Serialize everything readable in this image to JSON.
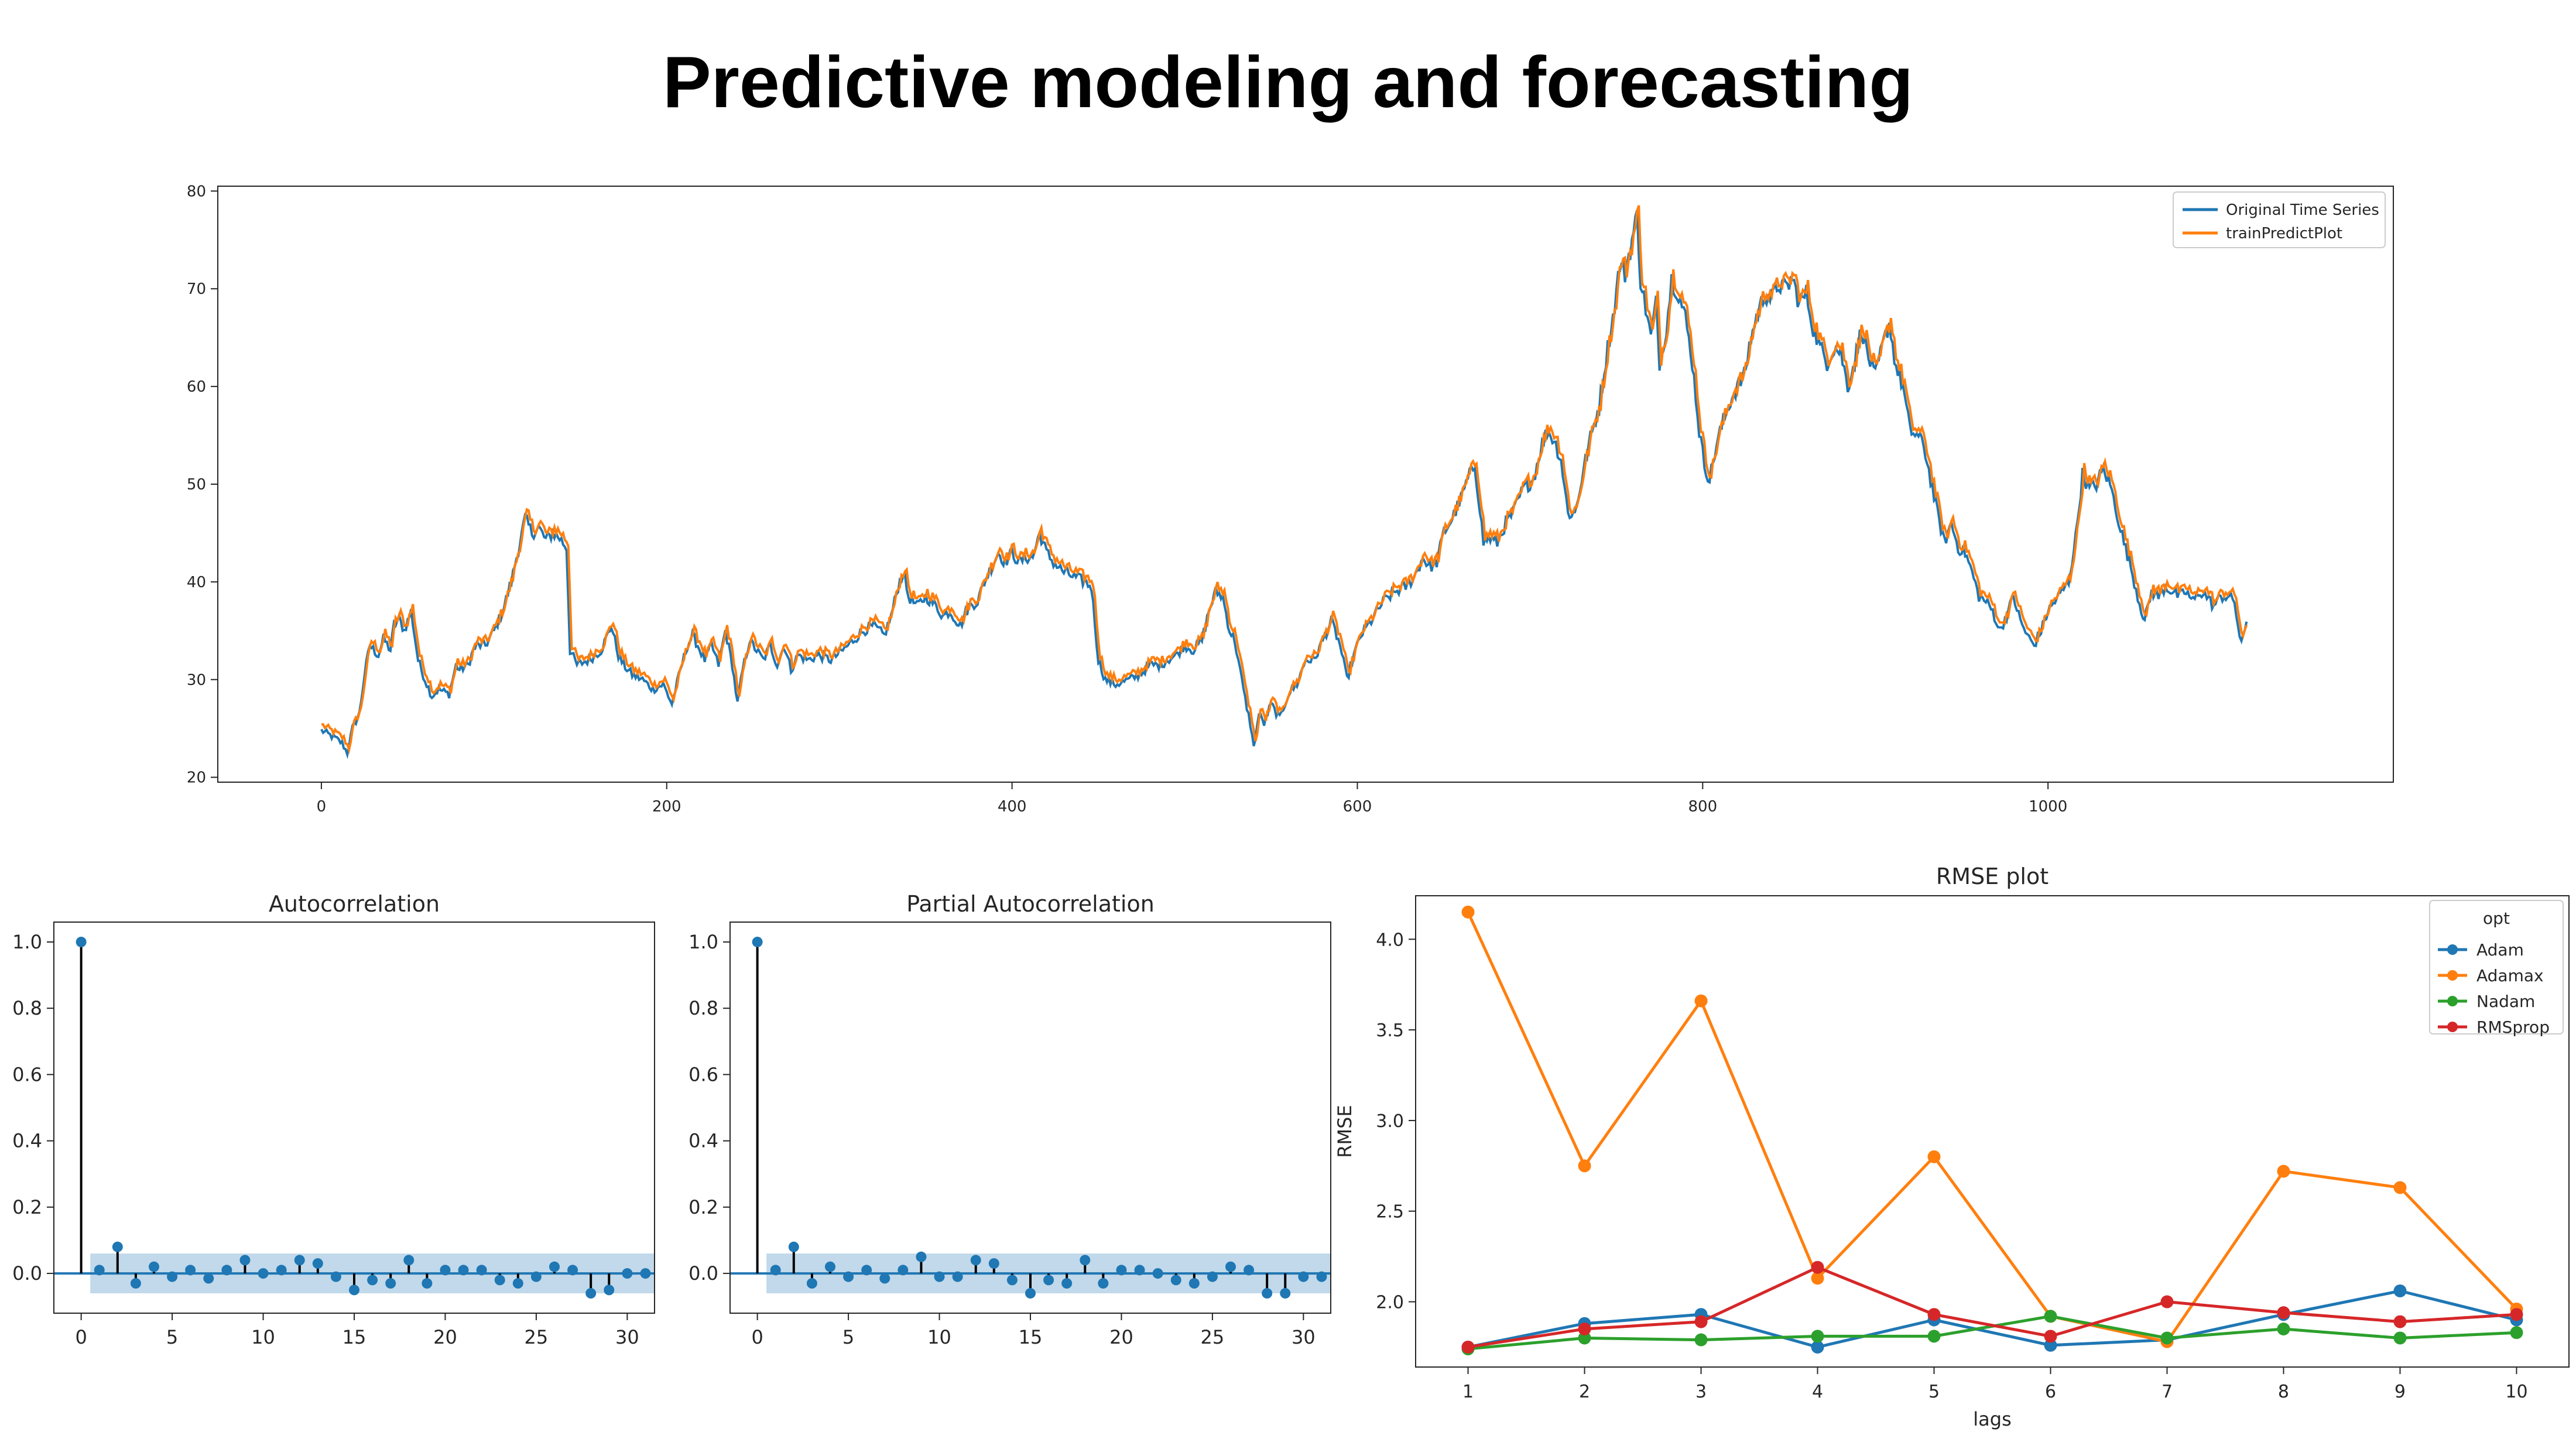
{
  "page": {
    "title": "Predictive modeling and forecasting"
  },
  "chart_data": [
    {
      "id": "timeseries",
      "type": "line",
      "title": "",
      "xlabel": "",
      "ylabel": "",
      "xlim": [
        -60,
        1200
      ],
      "ylim": [
        19.5,
        80.5
      ],
      "xticks": [
        0,
        200,
        400,
        600,
        800,
        1000
      ],
      "yticks": [
        20,
        30,
        40,
        50,
        60,
        70,
        80
      ],
      "grid": false,
      "legend": {
        "position": "upper-right",
        "entries": [
          "Original Time Series",
          "trainPredictPlot"
        ]
      },
      "x_range": [
        0,
        1137
      ],
      "keypoints": [
        [
          0,
          24.8
        ],
        [
          8,
          24.0
        ],
        [
          12,
          23.5
        ],
        [
          15,
          22.5
        ],
        [
          18,
          25.0
        ],
        [
          22,
          26.5
        ],
        [
          25,
          30.5
        ],
        [
          28,
          33.5
        ],
        [
          33,
          32.5
        ],
        [
          36,
          34.2
        ],
        [
          40,
          33.0
        ],
        [
          42,
          35.5
        ],
        [
          45,
          36.2
        ],
        [
          48,
          35.0
        ],
        [
          52,
          37.0
        ],
        [
          56,
          32.0
        ],
        [
          60,
          30.0
        ],
        [
          64,
          28.3
        ],
        [
          68,
          29.0
        ],
        [
          74,
          28.5
        ],
        [
          78,
          31.5
        ],
        [
          80,
          31.0
        ],
        [
          85,
          31.5
        ],
        [
          88,
          33.0
        ],
        [
          90,
          33.5
        ],
        [
          95,
          33.5
        ],
        [
          100,
          35.0
        ],
        [
          105,
          37.0
        ],
        [
          110,
          40.0
        ],
        [
          113,
          42.5
        ],
        [
          115,
          44.0
        ],
        [
          118,
          46.5
        ],
        [
          122,
          45.0
        ],
        [
          126,
          45.5
        ],
        [
          130,
          44.3
        ],
        [
          134,
          45.0
        ],
        [
          138,
          44.5
        ],
        [
          142,
          43.5
        ],
        [
          144,
          33.0
        ],
        [
          148,
          31.5
        ],
        [
          155,
          32.0
        ],
        [
          162,
          33.0
        ],
        [
          168,
          35.5
        ],
        [
          172,
          32.5
        ],
        [
          175,
          31.5
        ],
        [
          180,
          30.5
        ],
        [
          186,
          30.0
        ],
        [
          192,
          29.0
        ],
        [
          198,
          29.5
        ],
        [
          203,
          27.5
        ],
        [
          208,
          31.0
        ],
        [
          212,
          33.5
        ],
        [
          215,
          34.5
        ],
        [
          218,
          33.5
        ],
        [
          222,
          32.0
        ],
        [
          226,
          33.5
        ],
        [
          230,
          31.5
        ],
        [
          234,
          35.0
        ],
        [
          238,
          31.5
        ],
        [
          241,
          27.5
        ],
        [
          244,
          31.0
        ],
        [
          248,
          34.0
        ],
        [
          252,
          33.0
        ],
        [
          256,
          32.0
        ],
        [
          260,
          33.5
        ],
        [
          264,
          31.5
        ],
        [
          268,
          33.5
        ],
        [
          272,
          31.0
        ],
        [
          276,
          32.5
        ],
        [
          282,
          32.0
        ],
        [
          288,
          32.5
        ],
        [
          295,
          32.0
        ],
        [
          302,
          33.0
        ],
        [
          308,
          34.0
        ],
        [
          314,
          35.0
        ],
        [
          320,
          35.5
        ],
        [
          326,
          34.5
        ],
        [
          330,
          36.5
        ],
        [
          334,
          39.5
        ],
        [
          337,
          41.0
        ],
        [
          340,
          38.5
        ],
        [
          345,
          37.5
        ],
        [
          350,
          38.5
        ],
        [
          356,
          37.5
        ],
        [
          360,
          36.5
        ],
        [
          364,
          37.0
        ],
        [
          370,
          35.5
        ],
        [
          375,
          37.5
        ],
        [
          380,
          38.0
        ],
        [
          384,
          40.0
        ],
        [
          388,
          41.5
        ],
        [
          392,
          43.0
        ],
        [
          396,
          42.0
        ],
        [
          400,
          43.0
        ],
        [
          404,
          42.0
        ],
        [
          408,
          42.5
        ],
        [
          412,
          42.5
        ],
        [
          416,
          45.0
        ],
        [
          420,
          43.0
        ],
        [
          424,
          42.0
        ],
        [
          430,
          41.0
        ],
        [
          436,
          40.5
        ],
        [
          442,
          40.0
        ],
        [
          446,
          39.5
        ],
        [
          450,
          32.0
        ],
        [
          454,
          30.0
        ],
        [
          460,
          29.5
        ],
        [
          468,
          30.0
        ],
        [
          474,
          30.5
        ],
        [
          480,
          31.5
        ],
        [
          486,
          31.5
        ],
        [
          490,
          32.0
        ],
        [
          495,
          32.5
        ],
        [
          500,
          33.5
        ],
        [
          505,
          33.0
        ],
        [
          510,
          34.0
        ],
        [
          514,
          37.0
        ],
        [
          518,
          39.0
        ],
        [
          522,
          38.5
        ],
        [
          526,
          35.0
        ],
        [
          529,
          34.0
        ],
        [
          532,
          31.0
        ],
        [
          535,
          28.0
        ],
        [
          538,
          25.5
        ],
        [
          540,
          23.0
        ],
        [
          543,
          26.5
        ],
        [
          546,
          25.5
        ],
        [
          550,
          27.5
        ],
        [
          555,
          26.0
        ],
        [
          560,
          28.5
        ],
        [
          565,
          29.5
        ],
        [
          570,
          32.0
        ],
        [
          575,
          32.0
        ],
        [
          580,
          34.0
        ],
        [
          585,
          36.0
        ],
        [
          590,
          33.5
        ],
        [
          594,
          30.0
        ],
        [
          598,
          32.5
        ],
        [
          602,
          34.5
        ],
        [
          608,
          36.0
        ],
        [
          615,
          38.0
        ],
        [
          622,
          39.0
        ],
        [
          628,
          39.5
        ],
        [
          633,
          40.5
        ],
        [
          638,
          42.5
        ],
        [
          642,
          41.5
        ],
        [
          646,
          42.0
        ],
        [
          650,
          45.0
        ],
        [
          655,
          46.5
        ],
        [
          660,
          48.5
        ],
        [
          664,
          50.5
        ],
        [
          668,
          52.0
        ],
        [
          671,
          47.5
        ],
        [
          673,
          44.0
        ],
        [
          676,
          44.5
        ],
        [
          681,
          44.0
        ],
        [
          686,
          46.0
        ],
        [
          690,
          47.0
        ],
        [
          696,
          49.5
        ],
        [
          702,
          50.5
        ],
        [
          706,
          53.5
        ],
        [
          710,
          55.5
        ],
        [
          714,
          54.5
        ],
        [
          718,
          52.5
        ],
        [
          722,
          47.0
        ],
        [
          726,
          47.0
        ],
        [
          730,
          50.5
        ],
        [
          734,
          54.0
        ],
        [
          740,
          58.0
        ],
        [
          745,
          64.0
        ],
        [
          748,
          67.0
        ],
        [
          752,
          72.5
        ],
        [
          755,
          71.5
        ],
        [
          758,
          74.0
        ],
        [
          762,
          77.5
        ],
        [
          764,
          71.0
        ],
        [
          767,
          68.0
        ],
        [
          770,
          65.0
        ],
        [
          773,
          68.5
        ],
        [
          775,
          62.5
        ],
        [
          779,
          66.0
        ],
        [
          782,
          71.0
        ],
        [
          786,
          69.5
        ],
        [
          790,
          67.0
        ],
        [
          794,
          62.5
        ],
        [
          798,
          55.5
        ],
        [
          801,
          52.0
        ],
        [
          804,
          50.5
        ],
        [
          808,
          54.0
        ],
        [
          812,
          56.5
        ],
        [
          816,
          58.5
        ],
        [
          820,
          60.0
        ],
        [
          824,
          61.0
        ],
        [
          828,
          65.0
        ],
        [
          832,
          67.5
        ],
        [
          836,
          69.5
        ],
        [
          840,
          69.0
        ],
        [
          844,
          70.5
        ],
        [
          848,
          70.0
        ],
        [
          852,
          71.0
        ],
        [
          856,
          68.5
        ],
        [
          860,
          69.5
        ],
        [
          864,
          66.0
        ],
        [
          868,
          64.0
        ],
        [
          872,
          62.5
        ],
        [
          876,
          64.0
        ],
        [
          880,
          63.5
        ],
        [
          884,
          60.0
        ],
        [
          888,
          62.5
        ],
        [
          892,
          66.0
        ],
        [
          896,
          63.0
        ],
        [
          900,
          61.0
        ],
        [
          904,
          64.0
        ],
        [
          908,
          66.5
        ],
        [
          912,
          62.0
        ],
        [
          916,
          60.0
        ],
        [
          920,
          55.5
        ],
        [
          924,
          55.0
        ],
        [
          928,
          54.0
        ],
        [
          932,
          50.5
        ],
        [
          936,
          47.0
        ],
        [
          940,
          44.0
        ],
        [
          944,
          46.0
        ],
        [
          948,
          43.5
        ],
        [
          952,
          43.0
        ],
        [
          956,
          41.0
        ],
        [
          960,
          38.5
        ],
        [
          964,
          38.0
        ],
        [
          968,
          37.0
        ],
        [
          972,
          35.0
        ],
        [
          976,
          36.5
        ],
        [
          980,
          38.5
        ],
        [
          984,
          36.0
        ],
        [
          988,
          34.5
        ],
        [
          992,
          33.5
        ],
        [
          996,
          35.0
        ],
        [
          1000,
          37.0
        ],
        [
          1004,
          38.0
        ],
        [
          1008,
          39.0
        ],
        [
          1012,
          40.0
        ],
        [
          1016,
          44.5
        ],
        [
          1020,
          51.0
        ],
        [
          1024,
          49.5
        ],
        [
          1028,
          50.0
        ],
        [
          1032,
          51.5
        ],
        [
          1036,
          50.0
        ],
        [
          1040,
          47.0
        ],
        [
          1044,
          44.0
        ],
        [
          1048,
          41.5
        ],
        [
          1052,
          38.5
        ],
        [
          1056,
          36.0
        ],
        [
          1060,
          39.0
        ],
        [
          1064,
          38.5
        ],
        [
          1068,
          39.5
        ],
        [
          1072,
          39.0
        ],
        [
          1076,
          38.5
        ],
        [
          1080,
          39.0
        ],
        [
          1084,
          38.0
        ],
        [
          1088,
          39.0
        ],
        [
          1092,
          38.5
        ],
        [
          1096,
          37.5
        ],
        [
          1100,
          38.5
        ],
        [
          1104,
          38.5
        ],
        [
          1108,
          38.0
        ],
        [
          1110,
          35.5
        ],
        [
          1112,
          33.5
        ],
        [
          1115,
          36.0
        ]
      ],
      "series": [
        {
          "name": "Original Time Series",
          "color": "#1f77b4"
        },
        {
          "name": "trainPredictPlot",
          "color": "#ff7f0e"
        }
      ]
    },
    {
      "id": "acf",
      "type": "scatter",
      "title": "Autocorrelation",
      "xlabel": "",
      "ylabel": "",
      "xlim": [
        -1.5,
        31.5
      ],
      "ylim": [
        -0.12,
        1.06
      ],
      "xticks": [
        0,
        5,
        10,
        15,
        20,
        25,
        30
      ],
      "yticks": [
        0.0,
        0.2,
        0.4,
        0.6,
        0.8,
        1.0
      ],
      "confidence_band": 0.06,
      "lags": [
        0,
        1,
        2,
        3,
        4,
        5,
        6,
        7,
        8,
        9,
        10,
        11,
        12,
        13,
        14,
        15,
        16,
        17,
        18,
        19,
        20,
        21,
        22,
        23,
        24,
        25,
        26,
        27,
        28,
        29,
        30,
        31
      ],
      "values": [
        1.0,
        0.01,
        0.08,
        -0.03,
        0.02,
        -0.01,
        0.01,
        -0.015,
        0.01,
        0.04,
        0.0,
        0.01,
        0.04,
        0.03,
        -0.01,
        -0.05,
        -0.02,
        -0.03,
        0.04,
        -0.03,
        0.01,
        0.01,
        0.01,
        -0.02,
        -0.03,
        -0.01,
        0.02,
        0.01,
        -0.06,
        -0.05,
        0.0,
        0.0
      ]
    },
    {
      "id": "pacf",
      "type": "scatter",
      "title": "Partial Autocorrelation",
      "xlabel": "",
      "ylabel": "",
      "xlim": [
        -1.5,
        31.5
      ],
      "ylim": [
        -0.12,
        1.06
      ],
      "xticks": [
        0,
        5,
        10,
        15,
        20,
        25,
        30
      ],
      "yticks": [
        0.0,
        0.2,
        0.4,
        0.6,
        0.8,
        1.0
      ],
      "confidence_band": 0.06,
      "lags": [
        0,
        1,
        2,
        3,
        4,
        5,
        6,
        7,
        8,
        9,
        10,
        11,
        12,
        13,
        14,
        15,
        16,
        17,
        18,
        19,
        20,
        21,
        22,
        23,
        24,
        25,
        26,
        27,
        28,
        29,
        30,
        31
      ],
      "values": [
        1.0,
        0.01,
        0.08,
        -0.03,
        0.02,
        -0.01,
        0.01,
        -0.015,
        0.01,
        0.05,
        -0.01,
        -0.01,
        0.04,
        0.03,
        -0.02,
        -0.06,
        -0.02,
        -0.03,
        0.04,
        -0.03,
        0.01,
        0.01,
        0.0,
        -0.02,
        -0.03,
        -0.01,
        0.02,
        0.01,
        -0.06,
        -0.06,
        -0.01,
        -0.01
      ]
    },
    {
      "id": "rmse",
      "type": "line",
      "title": "RMSE plot",
      "xlabel": "lags",
      "ylabel": "RMSE",
      "xlim": [
        0.55,
        10.45
      ],
      "ylim": [
        1.64,
        4.24
      ],
      "xticks": [
        1,
        2,
        3,
        4,
        5,
        6,
        7,
        8,
        9,
        10
      ],
      "yticks": [
        2.0,
        2.5,
        3.0,
        3.5,
        4.0
      ],
      "yticklabels": [
        "2.0",
        "2.5",
        "3.0",
        "3.5",
        "4.0"
      ],
      "legend": {
        "title": "opt",
        "position": "upper-right"
      },
      "x": [
        1,
        2,
        3,
        4,
        5,
        6,
        7,
        8,
        9,
        10
      ],
      "series": [
        {
          "name": "Adam",
          "color": "#1f77b4",
          "values": [
            1.75,
            1.88,
            1.93,
            1.75,
            1.9,
            1.76,
            1.79,
            1.93,
            2.06,
            1.9
          ]
        },
        {
          "name": "Adamax",
          "color": "#ff7f0e",
          "values": [
            4.15,
            2.75,
            3.66,
            2.13,
            2.8,
            1.92,
            1.78,
            2.72,
            2.63,
            1.96
          ]
        },
        {
          "name": "Nadam",
          "color": "#2ca02c",
          "values": [
            1.74,
            1.8,
            1.79,
            1.81,
            1.81,
            1.92,
            1.8,
            1.85,
            1.8,
            1.83
          ]
        },
        {
          "name": "RMSprop",
          "color": "#d62728",
          "values": [
            1.75,
            1.85,
            1.89,
            2.19,
            1.93,
            1.81,
            2.0,
            1.94,
            1.89,
            1.93
          ]
        }
      ]
    }
  ]
}
